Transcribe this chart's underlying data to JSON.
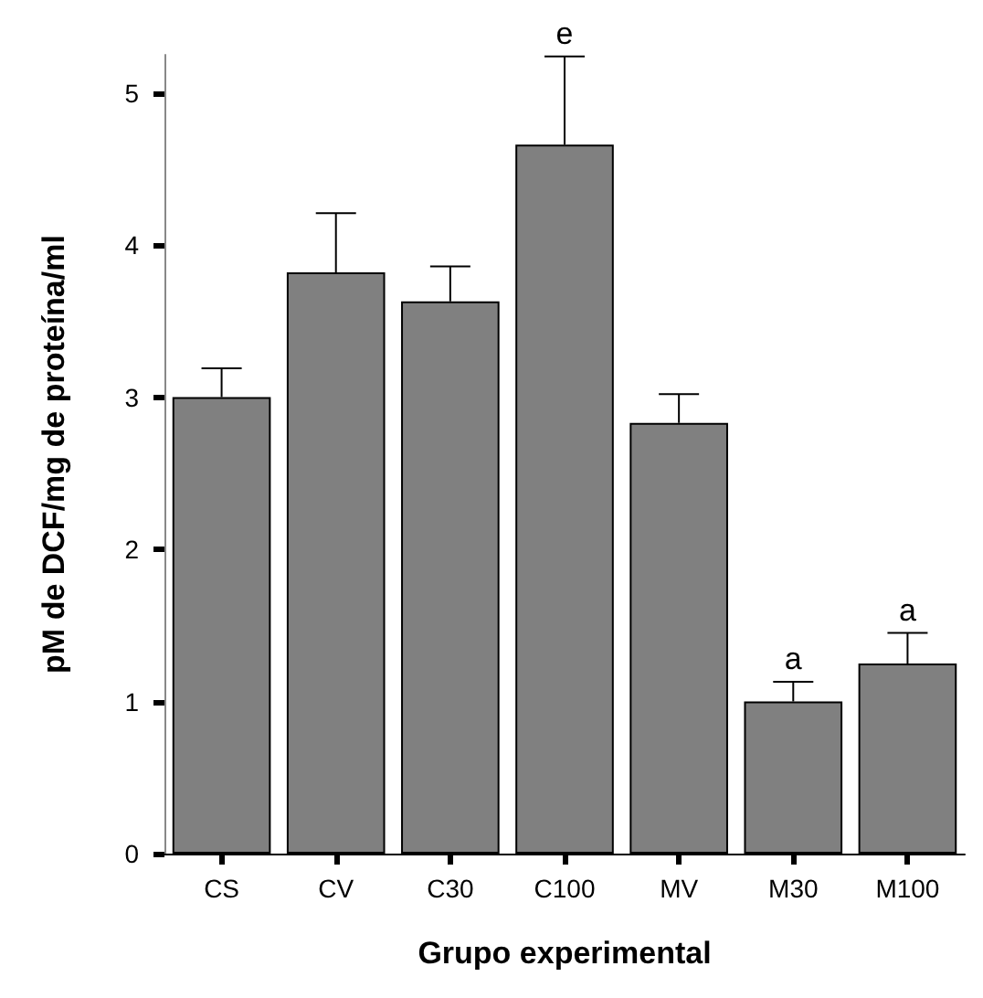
{
  "chart_data": {
    "type": "bar",
    "xlabel": "Grupo experimental",
    "ylabel": "pM de DCF/mg de proteína/ml",
    "categories": [
      "CS",
      "CV",
      "C30",
      "C100",
      "MV",
      "M30",
      "M100"
    ],
    "values": [
      3.0,
      3.82,
      3.63,
      4.66,
      2.83,
      1.0,
      1.25
    ],
    "errors": [
      [
        3.0,
        3.19
      ],
      [
        3.82,
        4.21
      ],
      [
        3.63,
        3.86
      ],
      [
        4.66,
        5.24
      ],
      [
        2.83,
        3.02
      ],
      [
        1.0,
        1.13
      ],
      [
        1.25,
        1.45
      ]
    ],
    "color": "#808080",
    "ylim": [
      0,
      5.25
    ],
    "yticks": [
      0,
      1,
      2,
      3,
      4,
      5
    ],
    "grid": false,
    "annotations": [
      {
        "text": "e",
        "x": "C100",
        "y": 5.24
      },
      {
        "text": "a",
        "x": "M30",
        "y": 1.0
      },
      {
        "text": "a",
        "x": "M100",
        "y": 1.25
      }
    ]
  }
}
